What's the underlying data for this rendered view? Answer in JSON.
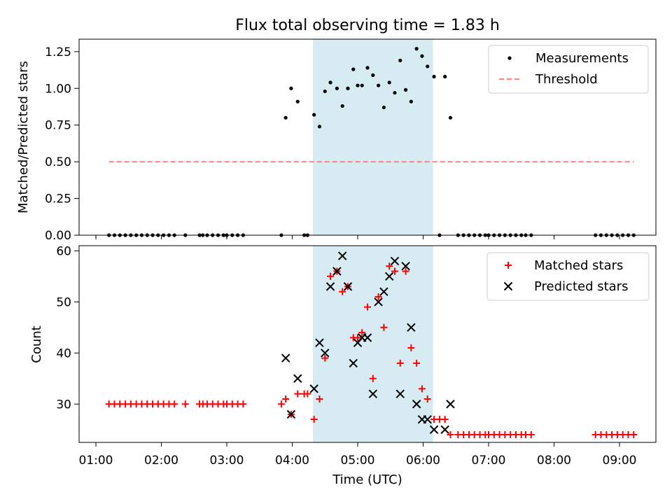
{
  "chart_data": [
    {
      "type": "scatter",
      "title": "Flux total observing time = 1.83 h",
      "xlabel": "",
      "ylabel": "Matched/Predicted stars",
      "ylim": [
        0,
        1.335
      ],
      "yticks": [
        "0.00",
        "0.25",
        "0.50",
        "0.75",
        "1.00",
        "1.25"
      ],
      "shaded_interval": [
        "04:19",
        "06:09"
      ],
      "shaded_color": "#add8e6",
      "legend": "top-right",
      "series": [
        {
          "name": "Measurements",
          "marker": "dot",
          "color": "#000000",
          "points": [
            [
              "01:12",
              0
            ],
            [
              "01:17",
              0
            ],
            [
              "01:22",
              0
            ],
            [
              "01:27",
              0
            ],
            [
              "01:32",
              0
            ],
            [
              "01:37",
              0
            ],
            [
              "01:42",
              0
            ],
            [
              "01:47",
              0
            ],
            [
              "01:52",
              0
            ],
            [
              "01:57",
              0
            ],
            [
              "02:02",
              0
            ],
            [
              "02:07",
              0
            ],
            [
              "02:12",
              0
            ],
            [
              "02:22",
              0
            ],
            [
              "02:35",
              0
            ],
            [
              "02:38",
              0
            ],
            [
              "02:42",
              0
            ],
            [
              "02:47",
              0
            ],
            [
              "02:52",
              0
            ],
            [
              "02:57",
              0
            ],
            [
              "03:00",
              0
            ],
            [
              "03:05",
              0
            ],
            [
              "03:10",
              0
            ],
            [
              "03:15",
              0
            ],
            [
              "03:50",
              0
            ],
            [
              "03:54",
              0.8
            ],
            [
              "03:59",
              1.0
            ],
            [
              "04:05",
              0.91
            ],
            [
              "04:11",
              0
            ],
            [
              "04:14",
              0
            ],
            [
              "04:20",
              0.82
            ],
            [
              "04:25",
              0.74
            ],
            [
              "04:30",
              0.98
            ],
            [
              "04:35",
              1.04
            ],
            [
              "04:41",
              1.0
            ],
            [
              "04:46",
              0.88
            ],
            [
              "04:51",
              1.0
            ],
            [
              "04:56",
              1.13
            ],
            [
              "05:00",
              1.02
            ],
            [
              "05:04",
              1.02
            ],
            [
              "05:09",
              1.14
            ],
            [
              "05:14",
              1.09
            ],
            [
              "05:19",
              1.02
            ],
            [
              "05:24",
              0.87
            ],
            [
              "05:29",
              1.04
            ],
            [
              "05:34",
              0.97
            ],
            [
              "05:39",
              1.19
            ],
            [
              "05:44",
              0.99
            ],
            [
              "05:49",
              0.91
            ],
            [
              "05:54",
              1.27
            ],
            [
              "05:59",
              1.22
            ],
            [
              "06:04",
              1.15
            ],
            [
              "06:10",
              1.08
            ],
            [
              "06:15",
              0
            ],
            [
              "06:20",
              1.08
            ],
            [
              "06:25",
              0.8
            ],
            [
              "06:32",
              0
            ],
            [
              "06:37",
              0
            ],
            [
              "06:42",
              0
            ],
            [
              "06:47",
              0
            ],
            [
              "06:52",
              0
            ],
            [
              "06:57",
              0
            ],
            [
              "07:00",
              0
            ],
            [
              "07:05",
              0
            ],
            [
              "07:10",
              0
            ],
            [
              "07:15",
              0
            ],
            [
              "07:20",
              0
            ],
            [
              "07:25",
              0
            ],
            [
              "07:30",
              0
            ],
            [
              "07:34",
              0
            ],
            [
              "07:39",
              0
            ],
            [
              "08:38",
              0
            ],
            [
              "08:43",
              0
            ],
            [
              "08:48",
              0
            ],
            [
              "08:53",
              0
            ],
            [
              "08:58",
              0
            ],
            [
              "09:03",
              0
            ],
            [
              "09:08",
              0
            ],
            [
              "09:13",
              0
            ]
          ]
        },
        {
          "name": "Threshold",
          "marker": "dashed-line",
          "color": "#ff8080",
          "points": [
            [
              "01:12",
              0.5
            ],
            [
              "09:13",
              0.5
            ]
          ]
        }
      ]
    },
    {
      "type": "scatter",
      "xlabel": "Time (UTC)",
      "ylabel": "Count",
      "ylim": [
        22.5,
        61
      ],
      "yticks": [
        "30",
        "40",
        "50",
        "60"
      ],
      "xticks": [
        "01:00",
        "02:00",
        "03:00",
        "04:00",
        "05:00",
        "06:00",
        "07:00",
        "08:00",
        "09:00"
      ],
      "shaded_interval": [
        "04:19",
        "06:09"
      ],
      "shaded_color": "#add8e6",
      "legend": "top-right",
      "series": [
        {
          "name": "Matched stars",
          "marker": "plus",
          "color": "#ff0000",
          "points": [
            [
              "01:12",
              30
            ],
            [
              "01:17",
              30
            ],
            [
              "01:22",
              30
            ],
            [
              "01:27",
              30
            ],
            [
              "01:32",
              30
            ],
            [
              "01:37",
              30
            ],
            [
              "01:42",
              30
            ],
            [
              "01:47",
              30
            ],
            [
              "01:52",
              30
            ],
            [
              "01:57",
              30
            ],
            [
              "02:02",
              30
            ],
            [
              "02:07",
              30
            ],
            [
              "02:12",
              30
            ],
            [
              "02:22",
              30
            ],
            [
              "02:35",
              30
            ],
            [
              "02:38",
              30
            ],
            [
              "02:42",
              30
            ],
            [
              "02:47",
              30
            ],
            [
              "02:52",
              30
            ],
            [
              "02:57",
              30
            ],
            [
              "03:00",
              30
            ],
            [
              "03:05",
              30
            ],
            [
              "03:10",
              30
            ],
            [
              "03:15",
              30
            ],
            [
              "03:50",
              30
            ],
            [
              "03:54",
              31
            ],
            [
              "03:59",
              28
            ],
            [
              "04:05",
              32
            ],
            [
              "04:11",
              32
            ],
            [
              "04:14",
              32
            ],
            [
              "04:20",
              27
            ],
            [
              "04:25",
              31
            ],
            [
              "04:30",
              39
            ],
            [
              "04:35",
              55
            ],
            [
              "04:41",
              56
            ],
            [
              "04:46",
              52
            ],
            [
              "04:51",
              53
            ],
            [
              "04:56",
              43
            ],
            [
              "05:00",
              43
            ],
            [
              "05:04",
              44
            ],
            [
              "05:09",
              49
            ],
            [
              "05:14",
              35
            ],
            [
              "05:19",
              51
            ],
            [
              "05:24",
              45
            ],
            [
              "05:29",
              57
            ],
            [
              "05:34",
              56
            ],
            [
              "05:39",
              38
            ],
            [
              "05:44",
              56
            ],
            [
              "05:49",
              41
            ],
            [
              "05:54",
              38
            ],
            [
              "05:59",
              33
            ],
            [
              "06:04",
              31
            ],
            [
              "06:10",
              27
            ],
            [
              "06:15",
              27
            ],
            [
              "06:20",
              27
            ],
            [
              "06:25",
              24
            ],
            [
              "06:32",
              24
            ],
            [
              "06:37",
              24
            ],
            [
              "06:42",
              24
            ],
            [
              "06:47",
              24
            ],
            [
              "06:52",
              24
            ],
            [
              "06:57",
              24
            ],
            [
              "07:00",
              24
            ],
            [
              "07:05",
              24
            ],
            [
              "07:10",
              24
            ],
            [
              "07:15",
              24
            ],
            [
              "07:20",
              24
            ],
            [
              "07:25",
              24
            ],
            [
              "07:30",
              24
            ],
            [
              "07:34",
              24
            ],
            [
              "07:39",
              24
            ],
            [
              "08:38",
              24
            ],
            [
              "08:43",
              24
            ],
            [
              "08:48",
              24
            ],
            [
              "08:53",
              24
            ],
            [
              "08:58",
              24
            ],
            [
              "09:03",
              24
            ],
            [
              "09:08",
              24
            ],
            [
              "09:13",
              24
            ]
          ]
        },
        {
          "name": "Predicted stars",
          "marker": "x",
          "color": "#000000",
          "points": [
            [
              "03:54",
              39
            ],
            [
              "03:59",
              28
            ],
            [
              "04:05",
              35
            ],
            [
              "04:20",
              33
            ],
            [
              "04:25",
              42
            ],
            [
              "04:30",
              40
            ],
            [
              "04:35",
              53
            ],
            [
              "04:41",
              56
            ],
            [
              "04:46",
              59
            ],
            [
              "04:51",
              53
            ],
            [
              "04:56",
              38
            ],
            [
              "05:00",
              42
            ],
            [
              "05:04",
              43
            ],
            [
              "05:09",
              43
            ],
            [
              "05:14",
              32
            ],
            [
              "05:19",
              50
            ],
            [
              "05:24",
              52
            ],
            [
              "05:29",
              55
            ],
            [
              "05:34",
              58
            ],
            [
              "05:39",
              32
            ],
            [
              "05:44",
              57
            ],
            [
              "05:49",
              45
            ],
            [
              "05:54",
              30
            ],
            [
              "05:59",
              27
            ],
            [
              "06:04",
              27
            ],
            [
              "06:10",
              25
            ],
            [
              "06:20",
              25
            ],
            [
              "06:25",
              30
            ]
          ]
        }
      ]
    }
  ]
}
